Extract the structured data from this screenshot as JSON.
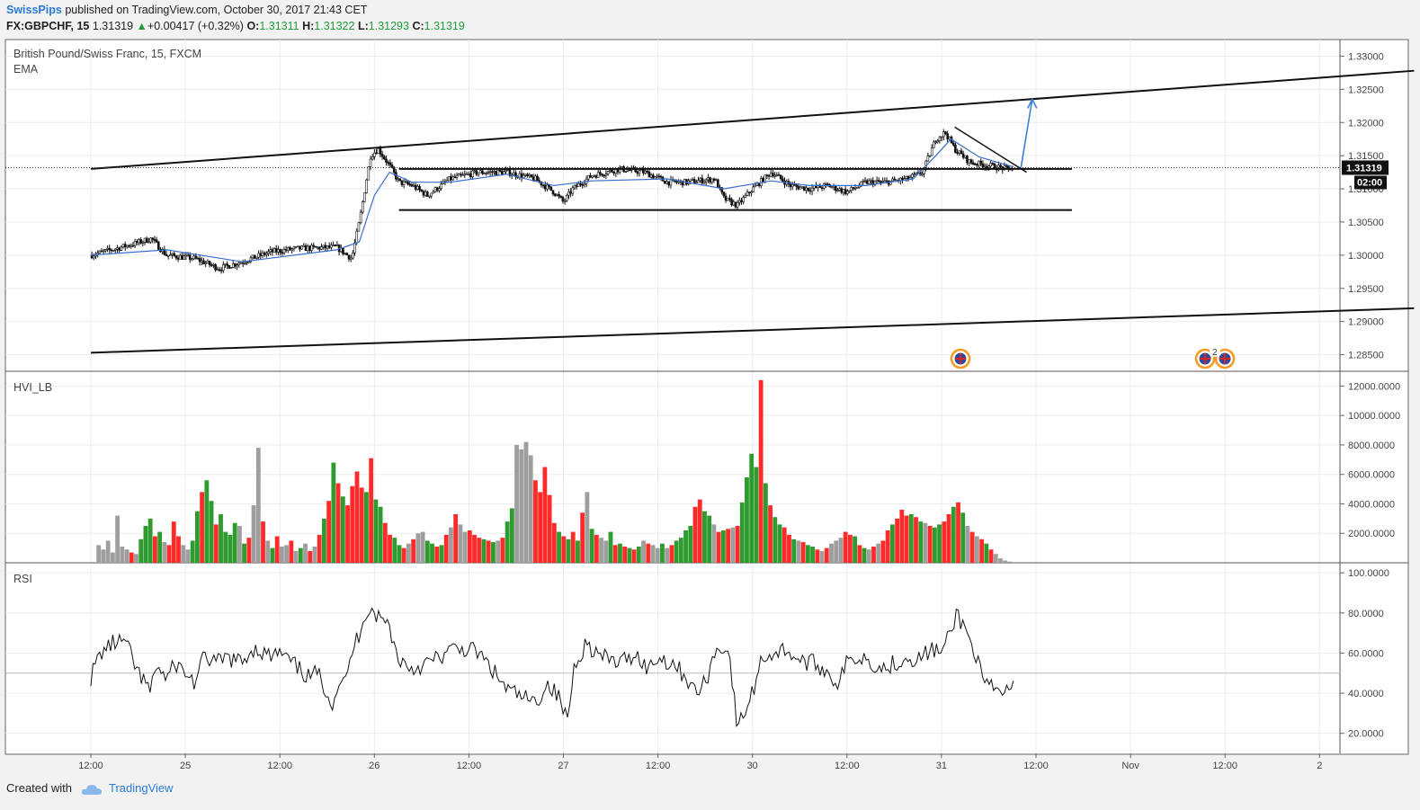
{
  "header": {
    "author": "SwissPips",
    "published": "published on TradingView.com, October 30, 2017 21:43 CET",
    "symbol": "FX:GBPCHF, 15",
    "last": "1.31319",
    "change": "+0.00417 (+0.32%)",
    "o_label": "O:",
    "o_value": "1.31311",
    "h_label": "H:",
    "h_value": "1.31322",
    "l_label": "L:",
    "l_value": "1.31293",
    "c_label": "C:",
    "c_value": "1.31319"
  },
  "footer": {
    "created_with": "Created with",
    "brand": "TradingView"
  },
  "colors": {
    "up_bar": "#2e9b2e",
    "down_bar": "#ff2a2a",
    "neutral_bar": "#9e9e9e",
    "ema": "#3a6fcc",
    "arrow": "#3b7fd9",
    "event_marker": "#f59a23"
  },
  "chart_data": [
    {
      "type": "candlestick",
      "title": "British Pound/Swiss Franc, 15, FXCM",
      "indicator": "EMA",
      "ylim": [
        1.2825,
        1.3325
      ],
      "y_ticks": [
        "1.33000",
        "1.32500",
        "1.32000",
        "1.31500",
        "1.31000",
        "1.30500",
        "1.30000",
        "1.29500",
        "1.29000",
        "1.28500"
      ],
      "last_price_label": "1.31319",
      "countdown_label": "02:00",
      "x_ticks": [
        "12:00",
        "25",
        "12:00",
        "26",
        "12:00",
        "27",
        "12:00",
        "30",
        "12:00",
        "31",
        "12:00",
        "Nov",
        "12:00",
        "2"
      ],
      "x_range": [
        0,
        7
      ],
      "price_path": [
        [
          0.0,
          1.3
        ],
        [
          0.2,
          1.3015
        ],
        [
          0.32,
          1.3025
        ],
        [
          0.4,
          1.3
        ],
        [
          0.55,
          1.2995
        ],
        [
          0.68,
          1.298
        ],
        [
          0.8,
          1.299
        ],
        [
          0.95,
          1.3005
        ],
        [
          1.1,
          1.301
        ],
        [
          1.3,
          1.3012
        ],
        [
          1.38,
          1.2995
        ],
        [
          1.42,
          1.305
        ],
        [
          1.48,
          1.315
        ],
        [
          1.52,
          1.316
        ],
        [
          1.58,
          1.3135
        ],
        [
          1.63,
          1.311
        ],
        [
          1.7,
          1.3105
        ],
        [
          1.78,
          1.309
        ],
        [
          1.9,
          1.3115
        ],
        [
          2.05,
          1.3125
        ],
        [
          2.2,
          1.3125
        ],
        [
          2.35,
          1.3115
        ],
        [
          2.45,
          1.3095
        ],
        [
          2.5,
          1.308
        ],
        [
          2.55,
          1.31
        ],
        [
          2.65,
          1.312
        ],
        [
          2.8,
          1.313
        ],
        [
          2.93,
          1.3125
        ],
        [
          3.05,
          1.311
        ],
        [
          3.15,
          1.311
        ],
        [
          3.3,
          1.3115
        ],
        [
          3.35,
          1.3085
        ],
        [
          3.42,
          1.3075
        ],
        [
          3.5,
          1.31
        ],
        [
          3.6,
          1.3125
        ],
        [
          3.7,
          1.3105
        ],
        [
          3.8,
          1.31
        ],
        [
          3.9,
          1.3105
        ],
        [
          4.0,
          1.3095
        ],
        [
          4.1,
          1.311
        ],
        [
          4.2,
          1.311
        ],
        [
          4.32,
          1.3115
        ],
        [
          4.4,
          1.3125
        ],
        [
          4.47,
          1.3175
        ],
        [
          4.52,
          1.3185
        ],
        [
          4.57,
          1.316
        ],
        [
          4.65,
          1.314
        ],
        [
          4.75,
          1.3135
        ],
        [
          4.85,
          1.313
        ],
        [
          4.88,
          1.3132
        ]
      ],
      "ema_path": [
        [
          0.0,
          1.3
        ],
        [
          0.4,
          1.3008
        ],
        [
          0.8,
          1.299
        ],
        [
          1.3,
          1.3008
        ],
        [
          1.42,
          1.302
        ],
        [
          1.5,
          1.309
        ],
        [
          1.58,
          1.3125
        ],
        [
          1.7,
          1.311
        ],
        [
          1.9,
          1.311
        ],
        [
          2.2,
          1.3122
        ],
        [
          2.45,
          1.3105
        ],
        [
          2.65,
          1.3112
        ],
        [
          3.05,
          1.3115
        ],
        [
          3.35,
          1.31
        ],
        [
          3.6,
          1.3112
        ],
        [
          3.8,
          1.3105
        ],
        [
          4.1,
          1.3105
        ],
        [
          4.35,
          1.3115
        ],
        [
          4.47,
          1.315
        ],
        [
          4.55,
          1.3175
        ],
        [
          4.7,
          1.3148
        ],
        [
          4.88,
          1.3133
        ]
      ],
      "drawings": [
        {
          "name": "upper-channel-line",
          "points": [
            [
              0.0,
              1.313
            ],
            [
              7.0,
              1.3278
            ]
          ]
        },
        {
          "name": "lower-channel-line",
          "points": [
            [
              0.0,
              1.2853
            ],
            [
              7.0,
              1.292
            ]
          ]
        },
        {
          "name": "range-top-line",
          "points": [
            [
              1.63,
              1.313
            ],
            [
              5.19,
              1.313
            ]
          ]
        },
        {
          "name": "range-bottom-line",
          "points": [
            [
              1.63,
              1.3068
            ],
            [
              5.19,
              1.3068
            ]
          ]
        },
        {
          "name": "wedge-line",
          "points": [
            [
              4.57,
              1.3193
            ],
            [
              4.95,
              1.3125
            ]
          ]
        },
        {
          "name": "breakout-arrow",
          "points": [
            [
              4.92,
              1.3131
            ],
            [
              4.98,
              1.3235
            ]
          ]
        }
      ]
    },
    {
      "type": "bar",
      "title": "HVI_LB",
      "ylim": [
        0,
        13000
      ],
      "y_ticks": [
        "12000.0000",
        "10000.0000",
        "8000.0000",
        "6000.0000",
        "4000.0000",
        "2000.0000",
        "0.0000"
      ],
      "bars_x_range": [
        0.03,
        4.9
      ],
      "values": [
        1200,
        900,
        1500,
        700,
        3200,
        1100,
        900,
        700,
        600,
        1600,
        2500,
        3000,
        1800,
        2100,
        1400,
        1200,
        2800,
        1800,
        1200,
        900,
        1500,
        3500,
        4800,
        5600,
        4200,
        2600,
        3300,
        2100,
        1900,
        2700,
        2500,
        1300,
        1700,
        3900,
        7800,
        2800,
        1500,
        1000,
        1800,
        1100,
        1200,
        1500,
        800,
        1000,
        1300,
        800,
        1100,
        1900,
        3000,
        4200,
        6800,
        5400,
        4500,
        3900,
        5200,
        6200,
        5100,
        4800,
        7100,
        4300,
        3800,
        2700,
        1900,
        1700,
        1200,
        1000,
        1300,
        1600,
        2000,
        2100,
        1500,
        1300,
        1100,
        1200,
        1900,
        2400,
        3300,
        2600,
        2100,
        2200,
        1900,
        1700,
        1600,
        1500,
        1400,
        1500,
        1700,
        2800,
        3700,
        8000,
        7700,
        8200,
        7300,
        5600,
        4800,
        6500,
        4600,
        2700,
        2100,
        1800,
        1600,
        2100,
        1500,
        3400,
        4800,
        2300,
        1900,
        1700,
        1500,
        2100,
        1200,
        1300,
        1100,
        1000,
        900,
        1100,
        1500,
        1300,
        1200,
        1000,
        1300,
        1000,
        1200,
        1500,
        1700,
        2200,
        2500,
        3800,
        4300,
        3500,
        3200,
        2600,
        2100,
        2200,
        2300,
        2400,
        2500,
        4100,
        5800,
        7400,
        6500,
        12400,
        5400,
        3900,
        3100,
        2600,
        2400,
        1900,
        1600,
        1500,
        1400,
        1200,
        1100,
        900,
        800,
        1000,
        1300,
        1500,
        1700,
        2100,
        1900,
        1800,
        1200,
        1000,
        900,
        1100,
        1300,
        1500,
        2200,
        2600,
        3000,
        3600,
        3200,
        3300,
        3100,
        2800,
        2700,
        2500,
        2400,
        2600,
        2800,
        3300,
        3800,
        4100,
        3400,
        2500,
        2100,
        1800,
        1600,
        1300,
        900,
        600,
        300,
        150,
        80,
        50
      ],
      "directions": "nnnnnnnsnlllslnsssnnllsllsllllnlsnnsnlsnnsnlnsnslslslsssslsllssllsnsnnllslsnsnnssslslnsllnnnnssssslslslsnlsnnlslslslnsnnlnsllllssllnslsnsllllslsllsslnsllsnsnnnsslslnsnsslssslslnsllsslslnsnslsnnnnnnnnnnn"
    },
    {
      "type": "line",
      "title": "RSI",
      "ylim": [
        10,
        105
      ],
      "y_ticks": [
        "100.0000",
        "80.0000",
        "60.0000",
        "40.0000",
        "20.0000"
      ],
      "reference_levels": [
        50
      ],
      "x": [
        0,
        0.05,
        0.12,
        0.18,
        0.25,
        0.32,
        0.34,
        0.4,
        0.45,
        0.55,
        0.6,
        0.68,
        0.72,
        0.8,
        0.85,
        0.88,
        0.95,
        1.0,
        1.05,
        1.1,
        1.15,
        1.2,
        1.28,
        1.32,
        1.35,
        1.38,
        1.42,
        1.45,
        1.48,
        1.52,
        1.58,
        1.62,
        1.7,
        1.78,
        1.85,
        1.92,
        2.0,
        2.05,
        2.12,
        2.2,
        2.28,
        2.35,
        2.42,
        2.48,
        2.52,
        2.56,
        2.62,
        2.7,
        2.8,
        2.88,
        2.95,
        3.0,
        3.08,
        3.15,
        3.2,
        3.25,
        3.3,
        3.35,
        3.38,
        3.42,
        3.5,
        3.55,
        3.62,
        3.68,
        3.75,
        3.82,
        3.88,
        3.95,
        4.0,
        4.05,
        4.1,
        4.18,
        4.25,
        4.32,
        4.38,
        4.45,
        4.5,
        4.55,
        4.58,
        4.62,
        4.68,
        4.72,
        4.8,
        4.88
      ],
      "values": [
        48,
        60,
        65,
        66,
        50,
        40,
        55,
        47,
        55,
        45,
        58,
        55,
        58,
        55,
        62,
        62,
        58,
        60,
        56,
        52,
        48,
        50,
        35,
        48,
        45,
        60,
        70,
        80,
        82,
        78,
        74,
        58,
        52,
        55,
        58,
        62,
        62,
        60,
        52,
        42,
        38,
        35,
        45,
        37,
        26,
        55,
        65,
        58,
        55,
        60,
        52,
        58,
        55,
        48,
        40,
        45,
        60,
        64,
        58,
        22,
        40,
        58,
        60,
        62,
        56,
        55,
        52,
        45,
        55,
        58,
        58,
        52,
        55,
        58,
        57,
        62,
        60,
        70,
        80,
        73,
        60,
        45,
        40,
        42
      ]
    }
  ]
}
